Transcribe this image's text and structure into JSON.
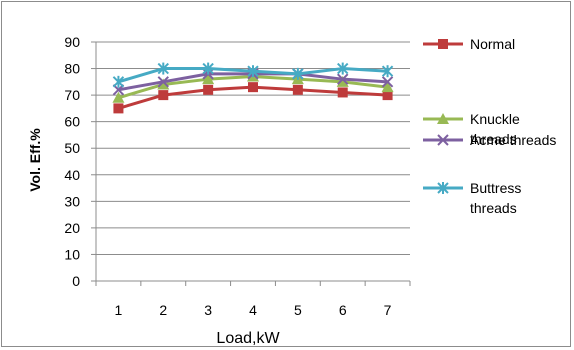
{
  "chart_data": {
    "type": "line",
    "title": "",
    "xlabel": "Load,kW",
    "ylabel": "Vol. Eff.%",
    "x": [
      1,
      2,
      3,
      4,
      5,
      6,
      7
    ],
    "ylim": [
      0,
      90
    ],
    "yticks": [
      0,
      10,
      20,
      30,
      40,
      50,
      60,
      70,
      80,
      90
    ],
    "grid": "horizontal",
    "legend_position": "right",
    "series": [
      {
        "name": "Normal",
        "color": "#be3b3b",
        "marker": "square",
        "values": [
          65,
          70,
          72,
          73,
          72,
          71,
          70
        ]
      },
      {
        "name": "Knuckle threads",
        "name_lines": [
          "Knuckle",
          "threads"
        ],
        "color": "#98b954",
        "marker": "triangle",
        "values": [
          69,
          74,
          76,
          77,
          76,
          75,
          73
        ]
      },
      {
        "name": "Acme threads",
        "name_lines": [
          "Acme threads"
        ],
        "color": "#7d60a0",
        "marker": "x",
        "values": [
          72,
          75,
          78,
          78,
          78,
          76,
          75
        ]
      },
      {
        "name": "Buttress threads",
        "name_lines": [
          "Buttress",
          "threads"
        ],
        "color": "#46aac4",
        "marker": "star",
        "values": [
          75,
          80,
          80,
          79,
          78,
          80,
          79
        ]
      }
    ]
  }
}
